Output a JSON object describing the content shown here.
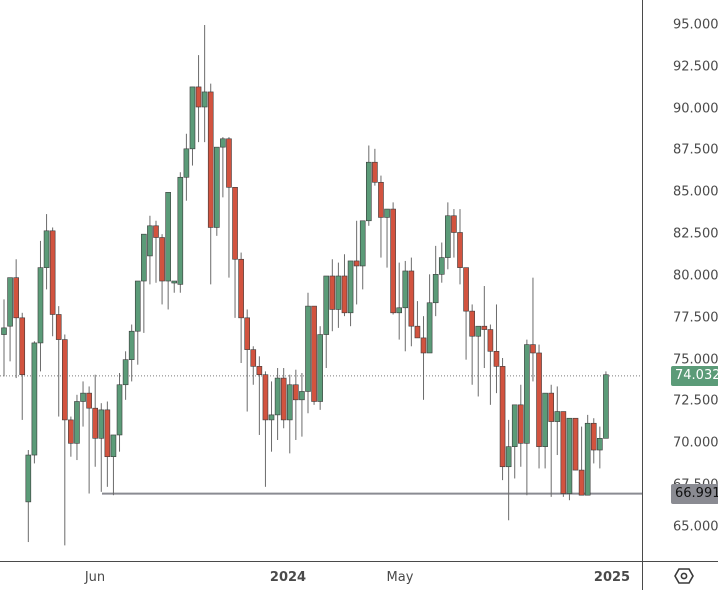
{
  "chart_data": {
    "type": "candlestick",
    "title": "",
    "xlabel": "",
    "ylabel": "",
    "ylim": [
      63.0,
      96.5
    ],
    "y_ticks": [
      "95.000",
      "92.500",
      "90.000",
      "87.500",
      "85.000",
      "82.500",
      "80.000",
      "77.500",
      "75.000",
      "72.500",
      "70.000",
      "67.500",
      "65.000"
    ],
    "x_ticks": [
      {
        "label": "Jun",
        "x": 95,
        "bold": false
      },
      {
        "label": "2024",
        "x": 288,
        "bold": true
      },
      {
        "label": "May",
        "x": 400,
        "bold": false
      },
      {
        "label": "2025",
        "x": 612,
        "bold": true
      }
    ],
    "current_price": {
      "label": "74.032",
      "value": 74.032,
      "color": "#5b9b78"
    },
    "horizontal_line": {
      "label": "66.991",
      "value": 66.991,
      "x_start": 102,
      "color": "#8a8b92"
    },
    "up_color": "#5b9b78",
    "down_color": "#d2533f",
    "candles": [
      {
        "o": 76.5,
        "h": 78.6,
        "l": 74.0,
        "c": 76.9
      },
      {
        "o": 77.0,
        "h": 79.9,
        "l": 74.9,
        "c": 79.9
      },
      {
        "o": 79.9,
        "h": 81.0,
        "l": 73.9,
        "c": 77.5
      },
      {
        "o": 77.5,
        "h": 77.8,
        "l": 71.4,
        "c": 74.1
      },
      {
        "o": 66.5,
        "h": 69.6,
        "l": 64.1,
        "c": 69.3
      },
      {
        "o": 69.3,
        "h": 76.1,
        "l": 68.8,
        "c": 76.0
      },
      {
        "o": 76.0,
        "h": 82.1,
        "l": 74.3,
        "c": 80.5
      },
      {
        "o": 80.5,
        "h": 83.7,
        "l": 79.2,
        "c": 82.7
      },
      {
        "o": 82.7,
        "h": 82.9,
        "l": 76.4,
        "c": 77.7
      },
      {
        "o": 77.7,
        "h": 78.2,
        "l": 71.6,
        "c": 76.2
      },
      {
        "o": 76.2,
        "h": 76.5,
        "l": 63.9,
        "c": 71.4
      },
      {
        "o": 71.4,
        "h": 71.6,
        "l": 69.2,
        "c": 70.0
      },
      {
        "o": 70.0,
        "h": 72.9,
        "l": 69.0,
        "c": 72.5
      },
      {
        "o": 72.5,
        "h": 73.7,
        "l": 71.0,
        "c": 73.0
      },
      {
        "o": 73.0,
        "h": 73.4,
        "l": 67.0,
        "c": 72.1
      },
      {
        "o": 72.1,
        "h": 74.1,
        "l": 68.6,
        "c": 70.3
      },
      {
        "o": 70.3,
        "h": 72.4,
        "l": 67.1,
        "c": 72.0
      },
      {
        "o": 72.0,
        "h": 72.5,
        "l": 67.4,
        "c": 69.2
      },
      {
        "o": 69.2,
        "h": 70.5,
        "l": 66.9,
        "c": 70.5
      },
      {
        "o": 70.5,
        "h": 74.2,
        "l": 69.5,
        "c": 73.5
      },
      {
        "o": 73.5,
        "h": 75.5,
        "l": 72.6,
        "c": 75.0
      },
      {
        "o": 75.0,
        "h": 77.1,
        "l": 73.7,
        "c": 76.7
      },
      {
        "o": 76.7,
        "h": 79.5,
        "l": 74.7,
        "c": 79.7
      },
      {
        "o": 79.7,
        "h": 81.2,
        "l": 76.6,
        "c": 82.5
      },
      {
        "o": 81.2,
        "h": 83.6,
        "l": 79.5,
        "c": 83.0
      },
      {
        "o": 83.0,
        "h": 83.3,
        "l": 79.6,
        "c": 82.3
      },
      {
        "o": 82.3,
        "h": 82.5,
        "l": 78.3,
        "c": 79.7
      },
      {
        "o": 79.7,
        "h": 82.6,
        "l": 78.0,
        "c": 85.0
      },
      {
        "o": 79.7,
        "h": 79.2,
        "l": 79.0,
        "c": 79.7
      },
      {
        "o": 79.5,
        "h": 86.2,
        "l": 79.0,
        "c": 85.9
      },
      {
        "o": 85.9,
        "h": 88.5,
        "l": 84.5,
        "c": 87.6
      },
      {
        "o": 87.6,
        "h": 90.7,
        "l": 86.6,
        "c": 91.3
      },
      {
        "o": 91.3,
        "h": 93.2,
        "l": 88.0,
        "c": 90.1
      },
      {
        "o": 90.1,
        "h": 95.0,
        "l": 88.0,
        "c": 91.0
      },
      {
        "o": 91.0,
        "h": 91.5,
        "l": 79.5,
        "c": 82.9
      },
      {
        "o": 82.9,
        "h": 86.8,
        "l": 82.4,
        "c": 87.7
      },
      {
        "o": 87.7,
        "h": 88.3,
        "l": 84.7,
        "c": 88.2
      },
      {
        "o": 88.2,
        "h": 88.3,
        "l": 79.9,
        "c": 85.3
      },
      {
        "o": 85.3,
        "h": 81.7,
        "l": 77.5,
        "c": 81.0
      },
      {
        "o": 81.0,
        "h": 81.4,
        "l": 74.8,
        "c": 77.5
      },
      {
        "o": 77.5,
        "h": 78.0,
        "l": 71.9,
        "c": 75.6
      },
      {
        "o": 75.6,
        "h": 75.8,
        "l": 73.5,
        "c": 74.6
      },
      {
        "o": 74.6,
        "h": 75.2,
        "l": 70.5,
        "c": 74.1
      },
      {
        "o": 74.1,
        "h": 74.3,
        "l": 67.4,
        "c": 71.4
      },
      {
        "o": 71.4,
        "h": 73.7,
        "l": 69.5,
        "c": 71.7
      },
      {
        "o": 71.7,
        "h": 74.5,
        "l": 70.2,
        "c": 73.9
      },
      {
        "o": 73.9,
        "h": 74.5,
        "l": 70.9,
        "c": 71.4
      },
      {
        "o": 71.4,
        "h": 74.1,
        "l": 69.4,
        "c": 73.5
      },
      {
        "o": 73.5,
        "h": 74.4,
        "l": 70.2,
        "c": 72.6
      },
      {
        "o": 72.6,
        "h": 74.2,
        "l": 70.4,
        "c": 73.1
      },
      {
        "o": 73.1,
        "h": 79.0,
        "l": 71.8,
        "c": 78.2
      },
      {
        "o": 78.2,
        "h": 77.7,
        "l": 72.3,
        "c": 72.5
      },
      {
        "o": 72.5,
        "h": 77.0,
        "l": 72.0,
        "c": 76.5
      },
      {
        "o": 76.5,
        "h": 79.8,
        "l": 74.5,
        "c": 80.0
      },
      {
        "o": 80.0,
        "h": 81.0,
        "l": 76.7,
        "c": 78.0
      },
      {
        "o": 78.0,
        "h": 80.8,
        "l": 76.9,
        "c": 80.0
      },
      {
        "o": 80.0,
        "h": 81.3,
        "l": 77.6,
        "c": 77.8
      },
      {
        "o": 77.8,
        "h": 80.0,
        "l": 77.0,
        "c": 80.9
      },
      {
        "o": 80.9,
        "h": 83.3,
        "l": 78.3,
        "c": 80.6
      },
      {
        "o": 80.6,
        "h": 83.0,
        "l": 79.2,
        "c": 83.3
      },
      {
        "o": 83.3,
        "h": 87.8,
        "l": 83.0,
        "c": 86.8
      },
      {
        "o": 86.8,
        "h": 87.6,
        "l": 85.4,
        "c": 85.6
      },
      {
        "o": 85.6,
        "h": 86.0,
        "l": 81.1,
        "c": 83.5
      },
      {
        "o": 83.5,
        "h": 84.0,
        "l": 80.5,
        "c": 84.0
      },
      {
        "o": 84.0,
        "h": 84.4,
        "l": 77.7,
        "c": 77.8
      },
      {
        "o": 77.8,
        "h": 80.8,
        "l": 76.2,
        "c": 78.1
      },
      {
        "o": 78.1,
        "h": 80.9,
        "l": 75.5,
        "c": 80.3
      },
      {
        "o": 80.3,
        "h": 81.1,
        "l": 75.8,
        "c": 77.0
      },
      {
        "o": 77.0,
        "h": 78.5,
        "l": 76.5,
        "c": 76.3
      },
      {
        "o": 76.3,
        "h": 77.6,
        "l": 72.6,
        "c": 75.4
      },
      {
        "o": 75.4,
        "h": 80.1,
        "l": 75.6,
        "c": 78.4
      },
      {
        "o": 78.4,
        "h": 81.8,
        "l": 77.6,
        "c": 80.1
      },
      {
        "o": 80.1,
        "h": 82.0,
        "l": 79.6,
        "c": 81.1
      },
      {
        "o": 81.1,
        "h": 84.4,
        "l": 80.4,
        "c": 83.6
      },
      {
        "o": 83.6,
        "h": 84.0,
        "l": 81.1,
        "c": 82.6
      },
      {
        "o": 82.6,
        "h": 84.0,
        "l": 79.5,
        "c": 80.5
      },
      {
        "o": 80.5,
        "h": 80.0,
        "l": 75.0,
        "c": 77.9
      },
      {
        "o": 77.9,
        "h": 78.3,
        "l": 73.5,
        "c": 76.4
      },
      {
        "o": 76.4,
        "h": 77.0,
        "l": 72.8,
        "c": 77.0
      },
      {
        "o": 77.0,
        "h": 79.4,
        "l": 74.5,
        "c": 76.8
      },
      {
        "o": 76.8,
        "h": 77.1,
        "l": 72.3,
        "c": 75.5
      },
      {
        "o": 75.5,
        "h": 78.3,
        "l": 73.0,
        "c": 74.6
      },
      {
        "o": 74.6,
        "h": 75.1,
        "l": 67.8,
        "c": 68.6
      },
      {
        "o": 68.6,
        "h": 71.4,
        "l": 65.4,
        "c": 69.8
      },
      {
        "o": 69.8,
        "h": 71.5,
        "l": 67.9,
        "c": 72.3
      },
      {
        "o": 72.3,
        "h": 73.5,
        "l": 68.6,
        "c": 70.0
      },
      {
        "o": 70.0,
        "h": 76.2,
        "l": 66.9,
        "c": 75.9
      },
      {
        "o": 75.9,
        "h": 79.9,
        "l": 73.7,
        "c": 75.4
      },
      {
        "o": 75.4,
        "h": 75.9,
        "l": 68.5,
        "c": 69.8
      },
      {
        "o": 69.8,
        "h": 72.6,
        "l": 68.5,
        "c": 73.0
      },
      {
        "o": 73.0,
        "h": 73.5,
        "l": 66.8,
        "c": 71.3
      },
      {
        "o": 71.3,
        "h": 73.4,
        "l": 69.3,
        "c": 71.9
      },
      {
        "o": 71.9,
        "h": 71.6,
        "l": 66.8,
        "c": 67.0
      },
      {
        "o": 67.0,
        "h": 71.5,
        "l": 66.6,
        "c": 71.5
      },
      {
        "o": 71.5,
        "h": 71.5,
        "l": 68.6,
        "c": 68.4
      },
      {
        "o": 68.4,
        "h": 71.0,
        "l": 67.2,
        "c": 66.9
      },
      {
        "o": 66.9,
        "h": 71.7,
        "l": 66.9,
        "c": 71.2
      },
      {
        "o": 71.2,
        "h": 71.5,
        "l": 68.8,
        "c": 69.6
      },
      {
        "o": 69.6,
        "h": 71.0,
        "l": 68.5,
        "c": 70.3
      },
      {
        "o": 70.3,
        "h": 74.3,
        "l": 70.4,
        "c": 74.1
      }
    ]
  },
  "price_axis": {
    "settings_icon": "hexagon-settings-icon"
  }
}
